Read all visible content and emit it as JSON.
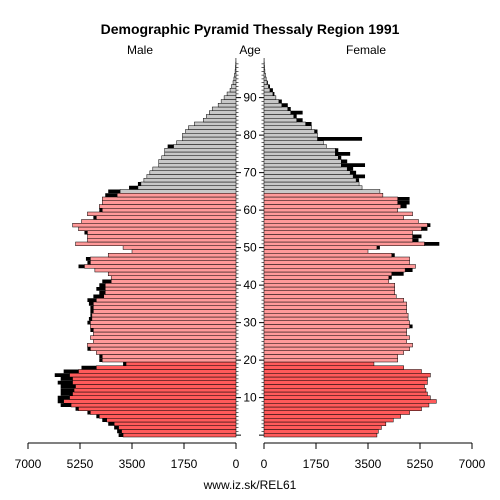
{
  "chart_data": {
    "type": "bar",
    "title": "Demographic Pyramid Thessaly Region 1991",
    "male_label": "Male",
    "female_label": "Female",
    "age_label": "Age",
    "source": "www.iz.sk/REL61",
    "x_ticks_left": [
      "7000",
      "5250",
      "3500",
      "1750",
      "0"
    ],
    "x_ticks_right": [
      "0",
      "1750",
      "3500",
      "5250",
      "7000"
    ],
    "x_tick_values": [
      0,
      1750,
      3500,
      5250,
      7000
    ],
    "age_ticks": [
      0,
      10,
      20,
      30,
      40,
      50,
      60,
      70,
      80,
      90
    ],
    "xlim": [
      0,
      7000
    ],
    "ylim": [
      0,
      100
    ],
    "age_groups": [
      {
        "max_age": 19,
        "color": "#ff5a5a"
      },
      {
        "max_age": 64,
        "color": "#ff9999"
      },
      {
        "max_age": 100,
        "color": "#c8c8c8"
      }
    ],
    "excess_color": "#000000",
    "ages": [
      0,
      1,
      2,
      3,
      4,
      5,
      6,
      7,
      8,
      9,
      10,
      11,
      12,
      13,
      14,
      15,
      16,
      17,
      18,
      19,
      20,
      21,
      22,
      23,
      24,
      25,
      26,
      27,
      28,
      29,
      30,
      31,
      32,
      33,
      34,
      35,
      36,
      37,
      38,
      39,
      40,
      41,
      42,
      43,
      44,
      45,
      46,
      47,
      48,
      49,
      50,
      51,
      52,
      53,
      54,
      55,
      56,
      57,
      58,
      59,
      60,
      61,
      62,
      63,
      64,
      65,
      66,
      67,
      68,
      69,
      70,
      71,
      72,
      73,
      74,
      75,
      76,
      77,
      78,
      79,
      80,
      81,
      82,
      83,
      84,
      85,
      86,
      87,
      88,
      89,
      90,
      91,
      92,
      93,
      94,
      95,
      96,
      97,
      98,
      99,
      100
    ],
    "series": [
      {
        "name": "Male",
        "values": [
          3950,
          4000,
          4100,
          4300,
          4500,
          4700,
          5000,
          5400,
          5900,
          6000,
          6000,
          5900,
          5900,
          5900,
          6000,
          5900,
          6100,
          5800,
          5200,
          3800,
          4600,
          4600,
          4700,
          5000,
          5000,
          4800,
          4900,
          4800,
          4900,
          4900,
          5000,
          4950,
          4900,
          4900,
          4900,
          4950,
          5000,
          4800,
          4600,
          4700,
          4600,
          4500,
          4200,
          4300,
          4750,
          5300,
          5000,
          5050,
          4300,
          3500,
          3800,
          5400,
          5000,
          5000,
          5100,
          5300,
          5500,
          5200,
          4800,
          5000,
          4600,
          4600,
          4500,
          4500,
          4400,
          4300,
          3600,
          3300,
          3100,
          3000,
          2900,
          2800,
          2600,
          2600,
          2500,
          2400,
          2400,
          2300,
          2000,
          1800,
          1800,
          1700,
          1600,
          1400,
          1100,
          1000,
          900,
          800,
          600,
          500,
          400,
          300,
          200,
          150,
          100,
          70,
          50,
          30,
          20,
          10,
          5
        ]
      },
      {
        "name": "Female",
        "values": [
          3800,
          3850,
          3950,
          4100,
          4350,
          4600,
          4900,
          5300,
          5550,
          5800,
          5600,
          5500,
          5450,
          5400,
          5500,
          5500,
          5600,
          5300,
          4700,
          3700,
          4500,
          4500,
          4700,
          4900,
          5000,
          4800,
          4900,
          4800,
          4800,
          5000,
          4900,
          4850,
          4850,
          4800,
          4800,
          4800,
          4700,
          4450,
          4400,
          4400,
          4400,
          4200,
          4300,
          4700,
          5000,
          5100,
          4900,
          4900,
          4400,
          3500,
          3900,
          5900,
          5200,
          5300,
          5000,
          5500,
          5600,
          5200,
          4700,
          5000,
          4500,
          4800,
          4900,
          4900,
          4000,
          3900,
          3300,
          3200,
          3200,
          3400,
          3100,
          3000,
          3400,
          2800,
          2600,
          2900,
          2500,
          2100,
          2000,
          3300,
          1800,
          1800,
          1600,
          1600,
          1300,
          1100,
          1300,
          900,
          800,
          600,
          400,
          350,
          300,
          200,
          130,
          80,
          50,
          30,
          20,
          10,
          5
        ]
      }
    ]
  }
}
